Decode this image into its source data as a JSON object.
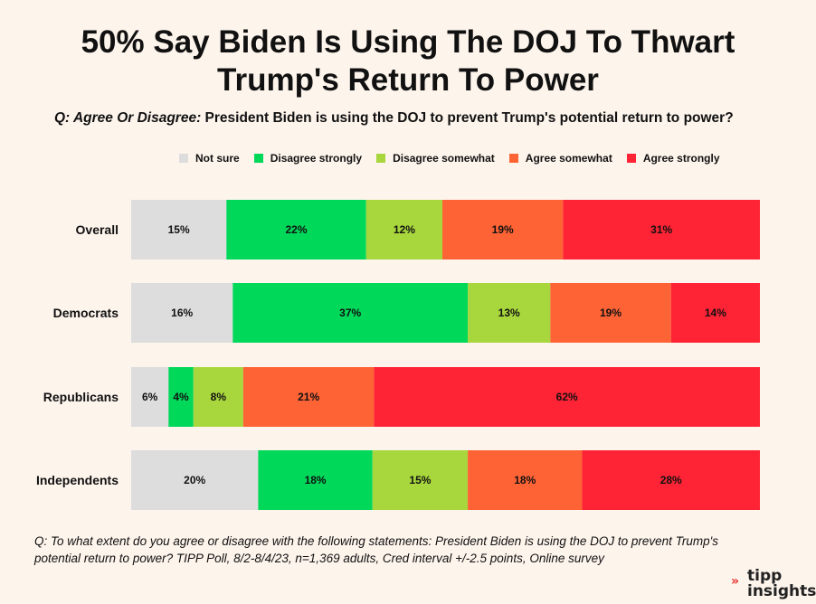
{
  "title_line1": "50% Say Biden Is Using The DOJ To Thwart",
  "title_line2": "Trump's Return To Power",
  "subtitle_prefix": "Q: Agree Or Disagree:",
  "subtitle_text": " President Biden is using the DOJ to prevent Trump's potential return to power?",
  "footnote": "Q:  To what extent do you agree or disagree with the following statements: President Biden is using the DOJ to prevent Trump's potential return to power?  TIPP Poll, 8/2-8/4/23, n=1,369 adults, Cred interval +/-2.5 points, Online survey",
  "logo": {
    "line1": "tipp",
    "line2": "insights"
  },
  "chart_data": {
    "type": "bar",
    "orientation": "horizontal",
    "stacked": true,
    "legend_position": "top",
    "categories": [
      "Overall",
      "Democrats",
      "Republicans",
      "Independents"
    ],
    "series": [
      {
        "name": "Not sure",
        "color": "#dddddd",
        "values": [
          15,
          16,
          6,
          20
        ],
        "labels": [
          "15%",
          "16%",
          "6%",
          "20%"
        ]
      },
      {
        "name": "Disagree strongly",
        "color": "#00d85a",
        "values": [
          22,
          37,
          4,
          18
        ],
        "labels": [
          "22%",
          "37%",
          "4%",
          "18%"
        ]
      },
      {
        "name": "Disagree somewhat",
        "color": "#a8d63d",
        "values": [
          12,
          13,
          8,
          15
        ],
        "labels": [
          "12%",
          "13%",
          "8%",
          "15%"
        ]
      },
      {
        "name": "Agree somewhat",
        "color": "#fe6335",
        "values": [
          19,
          19,
          21,
          18
        ],
        "labels": [
          "19%",
          "19%",
          "21%",
          "18%"
        ]
      },
      {
        "name": "Agree strongly",
        "color": "#fe2335",
        "values": [
          31,
          14,
          62,
          28
        ],
        "labels": [
          "31%",
          "14%",
          "62%",
          "28%"
        ]
      }
    ]
  }
}
